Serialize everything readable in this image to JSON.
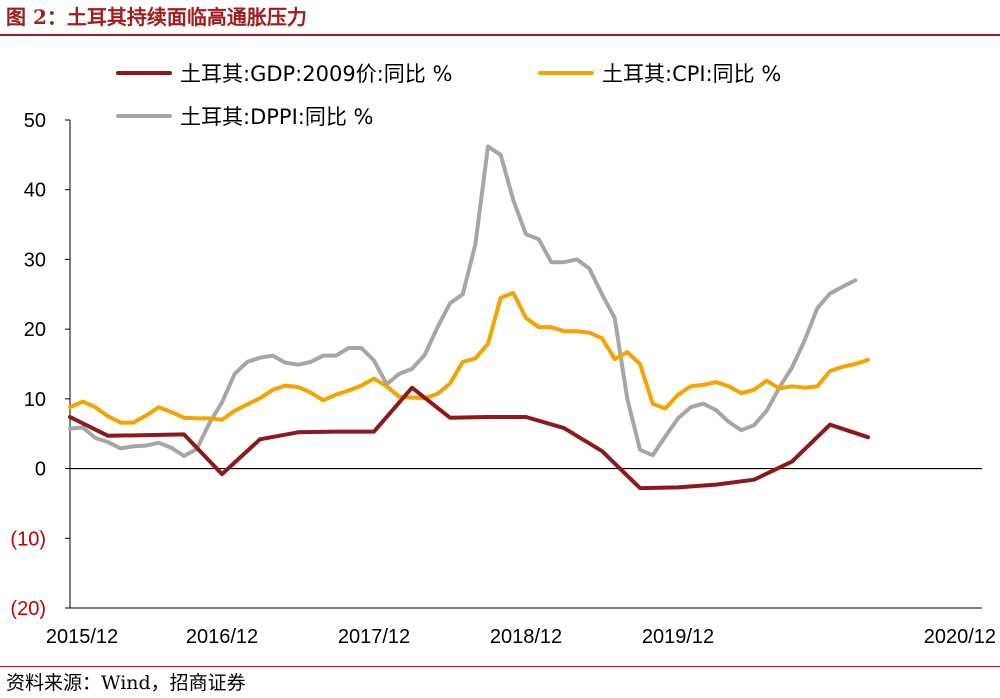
{
  "title": "图 2：土耳其持续面临高通胀压力",
  "source": "资料来源：Wind，招商证券",
  "chart_data": {
    "type": "line",
    "ylim": [
      -20,
      50
    ],
    "yticks": [
      50,
      40,
      30,
      20,
      10,
      0,
      -10,
      -20
    ],
    "ytick_labels": [
      "50",
      "40",
      "30",
      "20",
      "10",
      "0",
      "(10)",
      "(20)"
    ],
    "x_range": [
      "2015-12",
      "2020-12"
    ],
    "xtick_labels": [
      "2015/12",
      "2016/12",
      "2017/12",
      "2018/12",
      "2019/12",
      "2020/12"
    ],
    "legend_position": "top",
    "colors": {
      "gdp": "#8b1a1a",
      "cpi": "#f4a300",
      "dppi": "#a6a6a6",
      "zero_line": "#000000",
      "negative_ticks": "#c00000"
    },
    "series": [
      {
        "key": "gdp",
        "name": "土耳其:GDP:2009价:同比 %",
        "x": [
          0,
          3,
          6,
          9,
          12,
          15,
          18,
          21,
          24,
          27,
          30,
          33,
          36,
          39,
          42,
          45,
          48,
          51,
          54,
          57,
          60,
          63
        ],
        "values": [
          7.4,
          4.7,
          4.8,
          4.9,
          -0.8,
          4.2,
          5.2,
          5.3,
          5.3,
          11.6,
          7.3,
          7.4,
          7.4,
          5.8,
          2.5,
          -2.8,
          -2.7,
          -2.3,
          -1.6,
          1.0,
          6.3,
          4.5
        ]
      },
      {
        "key": "cpi",
        "name": "土耳其:CPI:同比 %",
        "x": [
          0,
          1,
          2,
          3,
          4,
          5,
          6,
          7,
          8,
          9,
          10,
          11,
          12,
          13,
          14,
          15,
          16,
          17,
          18,
          19,
          20,
          21,
          22,
          23,
          24,
          25,
          26,
          27,
          28,
          29,
          30,
          31,
          32,
          33,
          34,
          35,
          36,
          37,
          38,
          39,
          40,
          41,
          42,
          43,
          44,
          45,
          46,
          47,
          48,
          49,
          50,
          51,
          52,
          53,
          54,
          55,
          56,
          57,
          58,
          59,
          60,
          61,
          62,
          63,
          64,
          65,
          66,
          67,
          68,
          69,
          70,
          71,
          72
        ],
        "values": [
          8.8,
          9.6,
          8.8,
          7.5,
          6.6,
          6.6,
          7.6,
          8.8,
          8.1,
          7.3,
          7.2,
          7.2,
          7.0,
          8.3,
          9.2,
          10.1,
          11.3,
          11.9,
          11.7,
          10.9,
          9.8,
          10.6,
          11.2,
          11.9,
          12.9,
          11.8,
          10.3,
          10.2,
          10.1,
          10.7,
          12.2,
          15.3,
          15.8,
          17.9,
          24.5,
          25.2,
          21.6,
          20.3,
          20.3,
          19.7,
          19.7,
          19.5,
          18.7,
          15.7,
          16.7,
          15.0,
          9.3,
          8.6,
          10.6,
          11.8,
          12.0,
          12.4,
          11.8,
          10.8,
          11.3,
          12.6,
          11.5,
          11.8,
          11.6,
          11.8,
          14.0,
          14.6,
          15.0,
          15.6,
          null,
          null,
          null,
          null,
          null,
          null,
          null,
          null,
          null
        ]
      },
      {
        "key": "dppi",
        "name": "土耳其:DPPI:同比 %",
        "x": [
          0,
          1,
          2,
          3,
          4,
          5,
          6,
          7,
          8,
          9,
          10,
          11,
          12,
          13,
          14,
          15,
          16,
          17,
          18,
          19,
          20,
          21,
          22,
          23,
          24,
          25,
          26,
          27,
          28,
          29,
          30,
          31,
          32,
          33,
          34,
          35,
          36,
          37,
          38,
          39,
          40,
          41,
          42,
          43,
          44,
          45,
          46,
          47,
          48,
          49,
          50,
          51,
          52,
          53,
          54,
          55,
          56,
          57,
          58,
          59,
          60,
          61,
          62,
          63,
          64,
          65
        ],
        "values": [
          5.7,
          5.9,
          4.4,
          3.8,
          2.9,
          3.2,
          3.3,
          3.7,
          3.0,
          1.8,
          2.8,
          6.5,
          9.5,
          13.6,
          15.3,
          15.9,
          16.2,
          15.2,
          14.9,
          15.3,
          16.2,
          16.2,
          17.3,
          17.3,
          15.5,
          12.1,
          13.6,
          14.3,
          16.3,
          20.2,
          23.7,
          25.0,
          32.1,
          46.2,
          45.0,
          38.5,
          33.6,
          32.9,
          29.6,
          29.6,
          30.0,
          28.7,
          25.0,
          21.6,
          10.0,
          2.7,
          1.9,
          4.6,
          7.2,
          8.8,
          9.3,
          8.4,
          6.7,
          5.5,
          6.2,
          8.3,
          11.6,
          14.5,
          18.4,
          23.0,
          25.1,
          26.1,
          27.0,
          null,
          null,
          null
        ]
      }
    ]
  }
}
